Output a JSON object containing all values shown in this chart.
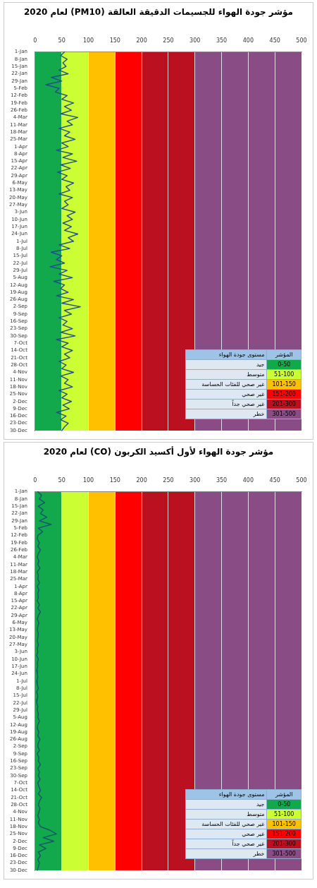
{
  "chart_data": [
    {
      "type": "line",
      "orientation": "horizontal",
      "title": "مؤشر جودة الهواء للجسيمات الدقيقة العالقة (PM10) لعام 2020",
      "categories": [
        "1-Jan",
        null,
        "8-Jan",
        null,
        "15-Jan",
        null,
        "22-Jan",
        null,
        "29-Jan",
        null,
        "5-Feb",
        null,
        "12-Feb",
        null,
        "19-Feb",
        null,
        "26-Feb",
        null,
        "4-Mar",
        null,
        "11-Mar",
        null,
        "18-Mar",
        null,
        "25-Mar",
        null,
        "1-Apr",
        null,
        "8-Apr",
        null,
        "15-Apr",
        null,
        "22-Apr",
        null,
        "29-Apr",
        null,
        "6-May",
        null,
        "13-May",
        null,
        "20-May",
        null,
        "27-May",
        null,
        "3-Jun",
        null,
        "10-Jun",
        null,
        "17-Jun",
        null,
        "24-Jun",
        null,
        "1-Jul",
        null,
        "8-Jul",
        null,
        "15-Jul",
        null,
        "22-Jul",
        null,
        "29-Jul",
        null,
        "5-Aug",
        null,
        "12-Aug",
        null,
        "19-Aug",
        null,
        "26-Aug",
        null,
        "2-Sep",
        null,
        "9-Sep",
        null,
        "16-Sep",
        null,
        "23-Sep",
        null,
        "30-Sep",
        null,
        "7-Oct",
        null,
        "14-Oct",
        null,
        "21-Oct",
        null,
        "28-Oct",
        null,
        "4-Nov",
        null,
        "11-Nov",
        null,
        "18-Nov",
        null,
        "25-Nov",
        null,
        "2-Dec",
        null,
        "9-Dec",
        null,
        "16-Dec",
        null,
        "23-Dec",
        null,
        "30-Dec"
      ],
      "series": [
        {
          "color": "#1f4e8c",
          "values": [
            55,
            48,
            60,
            52,
            58,
            45,
            62,
            30,
            50,
            20,
            45,
            38,
            60,
            50,
            72,
            55,
            68,
            48,
            80,
            60,
            70,
            45,
            65,
            55,
            75,
            50,
            62,
            40,
            70,
            52,
            78,
            48,
            66,
            42,
            60,
            50,
            72,
            58,
            65,
            45,
            70,
            55,
            62,
            50,
            75,
            60,
            70,
            52,
            68,
            55,
            80,
            62,
            72,
            45,
            65,
            30,
            50,
            40,
            55,
            28,
            60,
            45,
            70,
            35,
            55,
            48,
            62,
            40,
            72,
            50,
            85,
            55,
            68,
            45,
            60,
            52,
            70,
            48,
            75,
            40,
            62,
            50,
            70,
            55,
            65,
            45,
            58,
            50,
            72,
            48,
            62,
            55,
            70,
            45,
            60,
            50,
            68,
            52,
            64,
            40,
            58,
            48,
            62,
            55,
            50
          ]
        }
      ],
      "xlim": [
        0,
        500
      ],
      "xticks": [
        0,
        50,
        100,
        150,
        200,
        250,
        300,
        350,
        400,
        450,
        500
      ],
      "grid": "x",
      "bands": [
        {
          "axis": "x",
          "from": 0,
          "to": 50,
          "color": "#12a84c"
        },
        {
          "axis": "x",
          "from": 50,
          "to": 100,
          "color": "#ccff33"
        },
        {
          "axis": "x",
          "from": 100,
          "to": 150,
          "color": "#ffc000"
        },
        {
          "axis": "x",
          "from": 150,
          "to": 200,
          "color": "#ff0000"
        },
        {
          "axis": "x",
          "from": 200,
          "to": 300,
          "color": "#bb1020"
        },
        {
          "axis": "x",
          "from": 300,
          "to": 500,
          "color": "#8a4c84"
        }
      ],
      "annotations": [
        "المؤشر",
        "مستوى جودة الهواء",
        "0-50",
        "جيد",
        "51-100",
        "متوسط",
        "101-150",
        "غير صحي للفئات الحساسة",
        "151-200",
        "غير صحي",
        "201-300",
        "غير صحي جداً",
        "301-500",
        "خطر"
      ]
    },
    {
      "type": "line",
      "orientation": "horizontal",
      "title": "مؤشر جودة الهواء لأول أكسيد الكربون (CO) لعام 2020",
      "categories": [
        "1-Jan",
        null,
        "8-Jan",
        null,
        "15-Jan",
        null,
        "22-Jan",
        null,
        "29-Jan",
        null,
        "5-Feb",
        null,
        "12-Feb",
        null,
        "19-Feb",
        null,
        "26-Feb",
        null,
        "4-Mar",
        null,
        "11-Mar",
        null,
        "18-Mar",
        null,
        "25-Mar",
        null,
        "1-Apr",
        null,
        "8-Apr",
        null,
        "15-Apr",
        null,
        "22-Apr",
        null,
        "29-Apr",
        null,
        "6-May",
        null,
        "13-May",
        null,
        "20-May",
        null,
        "27-May",
        null,
        "3-Jun",
        null,
        "10-Jun",
        null,
        "17-Jun",
        null,
        "24-Jun",
        null,
        "1-Jul",
        null,
        "8-Jul",
        null,
        "15-Jul",
        null,
        "22-Jul",
        null,
        "29-Jul",
        null,
        "5-Aug",
        null,
        "12-Aug",
        null,
        "19-Aug",
        null,
        "26-Aug",
        null,
        "2-Sep",
        null,
        "9-Sep",
        null,
        "16-Sep",
        null,
        "23-Sep",
        null,
        "30-Sep",
        null,
        "7-Oct",
        null,
        "14-Oct",
        null,
        "21-Oct",
        null,
        "28-Oct",
        null,
        "4-Nov",
        null,
        "11-Nov",
        null,
        "18-Nov",
        null,
        "25-Nov",
        null,
        "2-Dec",
        null,
        "9-Dec",
        null,
        "16-Dec",
        null,
        "23-Dec",
        null,
        "30-Dec"
      ],
      "series": [
        {
          "color": "#17566a",
          "values": [
            5,
            12,
            8,
            18,
            6,
            15,
            10,
            22,
            8,
            30,
            6,
            14,
            5,
            4,
            8,
            5,
            10,
            6,
            4,
            7,
            5,
            9,
            4,
            6,
            5,
            8,
            4,
            7,
            5,
            6,
            4,
            8,
            5,
            10,
            6,
            4,
            7,
            5,
            4,
            6,
            5,
            4,
            6,
            4,
            5,
            3,
            6,
            4,
            5,
            3,
            4,
            5,
            3,
            4,
            6,
            3,
            5,
            4,
            3,
            5,
            4,
            6,
            5,
            8,
            5,
            4,
            7,
            5,
            9,
            6,
            5,
            8,
            4,
            7,
            6,
            10,
            5,
            8,
            6,
            9,
            5,
            7,
            10,
            6,
            12,
            8,
            6,
            9,
            7,
            5,
            8,
            6,
            10,
            28,
            40,
            15,
            35,
            8,
            20,
            6,
            10,
            5,
            8,
            6,
            4
          ]
        }
      ],
      "xlim": [
        0,
        500
      ],
      "xticks": [
        0,
        50,
        100,
        150,
        200,
        250,
        300,
        350,
        400,
        450,
        500
      ],
      "grid": "x",
      "bands": [
        {
          "axis": "x",
          "from": 0,
          "to": 50,
          "color": "#12a84c"
        },
        {
          "axis": "x",
          "from": 50,
          "to": 100,
          "color": "#ccff33"
        },
        {
          "axis": "x",
          "from": 100,
          "to": 150,
          "color": "#ffc000"
        },
        {
          "axis": "x",
          "from": 150,
          "to": 200,
          "color": "#ff0000"
        },
        {
          "axis": "x",
          "from": 200,
          "to": 300,
          "color": "#bb1020"
        },
        {
          "axis": "x",
          "from": 300,
          "to": 500,
          "color": "#8a4c84"
        }
      ],
      "annotations": [
        "المؤشر",
        "مستوى جودة الهواء",
        "0-50",
        "جيد",
        "51-100",
        "متوسط",
        "101-150",
        "غير صحي للفئات الحساسة",
        "151-200",
        "غير صحي",
        "201-300",
        "غير صحي جداً",
        "301-500",
        "خطر"
      ]
    }
  ]
}
